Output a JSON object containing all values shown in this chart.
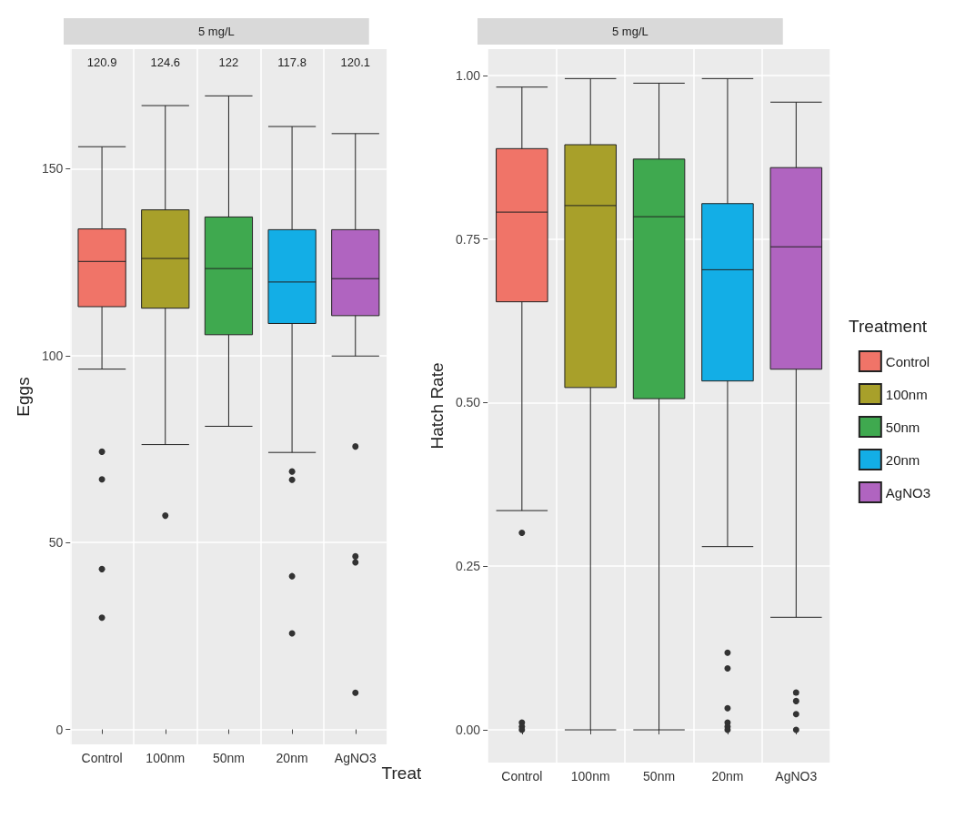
{
  "chart_data": [
    {
      "type": "box",
      "title": "5 mg/L",
      "xlabel": "Treat",
      "ylabel": "Eggs",
      "categories": [
        "Control",
        "100nm",
        "50nm",
        "20nm",
        "AgNO3"
      ],
      "colors": [
        "#f07468",
        "#a8a02a",
        "#3fa94f",
        "#13aee6",
        "#b064c0"
      ],
      "boxes": [
        {
          "low": 96.4,
          "q1": 113.1,
          "median": 125.2,
          "q3": 133.9,
          "high": 155.9,
          "outliers": [
            74.3,
            66.9,
            42.9,
            29.9
          ]
        },
        {
          "low": 76.2,
          "q1": 112.7,
          "median": 126,
          "q3": 139,
          "high": 166.9,
          "outliers": [
            57.2
          ]
        },
        {
          "low": 81.1,
          "q1": 105.6,
          "median": 123.3,
          "q3": 137.1,
          "high": 169.5
        },
        {
          "low": 74.1,
          "q1": 108.6,
          "median": 119.7,
          "q3": 133.7,
          "high": 161.3,
          "outliers": [
            69,
            66.8,
            41,
            25.7
          ]
        },
        {
          "low": 99.9,
          "q1": 110.7,
          "median": 120.6,
          "q3": 133.7,
          "high": 159.4,
          "outliers": [
            75.7,
            46.3,
            44.7,
            9.8
          ]
        }
      ],
      "annotations": [
        "120.9",
        "124.6",
        "122",
        "117.8",
        "120.1"
      ],
      "ylim": [
        -4,
        182
      ],
      "yticks": [
        0,
        50,
        100,
        150
      ],
      "grid": true,
      "legend": false
    },
    {
      "type": "box",
      "title": "5 mg/L",
      "ylabel": "Hatch Rate",
      "legend_title": "Treatment",
      "categories": [
        "Control",
        "100nm",
        "50nm",
        "20nm",
        "AgNO3"
      ],
      "series": [
        {
          "name": "Control",
          "color": "#f07468",
          "boxes": [
            {
              "low": 0.335,
              "q1": 0.654,
              "median": 0.791,
              "q3": 0.888,
              "high": 0.982,
              "outliers": [
                0.301,
                0.011,
                0.005,
                0
              ]
            },
            null,
            null,
            null,
            null
          ]
        },
        {
          "name": "100nm",
          "color": "#a8a02a",
          "boxes": [
            null,
            {
              "low": 0,
              "q1": 0.523,
              "median": 0.801,
              "q3": 0.894,
              "high": 0.995
            },
            null,
            null,
            null
          ]
        },
        {
          "name": "50nm",
          "color": "#3fa94f",
          "boxes": [
            null,
            null,
            {
              "low": 0,
              "q1": 0.506,
              "median": 0.784,
              "q3": 0.872,
              "high": 0.988
            },
            null,
            null
          ]
        },
        {
          "name": "20nm",
          "color": "#13aee6",
          "boxes": [
            null,
            null,
            null,
            {
              "low": 0.28,
              "q1": 0.533,
              "median": 0.703,
              "q3": 0.804,
              "high": 0.995,
              "outliers": [
                0.118,
                0.094,
                0.033,
                0.011,
                0.005,
                0
              ]
            },
            null
          ]
        },
        {
          "name": "AgNO3",
          "color": "#b064c0",
          "boxes": [
            null,
            null,
            null,
            null,
            {
              "low": 0.172,
              "q1": 0.551,
              "median": 0.738,
              "q3": 0.859,
              "high": 0.959,
              "outliers": [
                0.057,
                0.044,
                0.024,
                0
              ]
            }
          ]
        }
      ],
      "ylim": [
        -0.05,
        1.04
      ],
      "yticks": [
        {
          "value": 0,
          "label": "0.00"
        },
        {
          "value": 0.25,
          "label": "0.25"
        },
        {
          "value": 0.5,
          "label": "0.50"
        },
        {
          "value": 0.75,
          "label": "0.75"
        },
        {
          "value": 1,
          "label": "1.00"
        }
      ],
      "grid": true,
      "legend": "right"
    }
  ]
}
